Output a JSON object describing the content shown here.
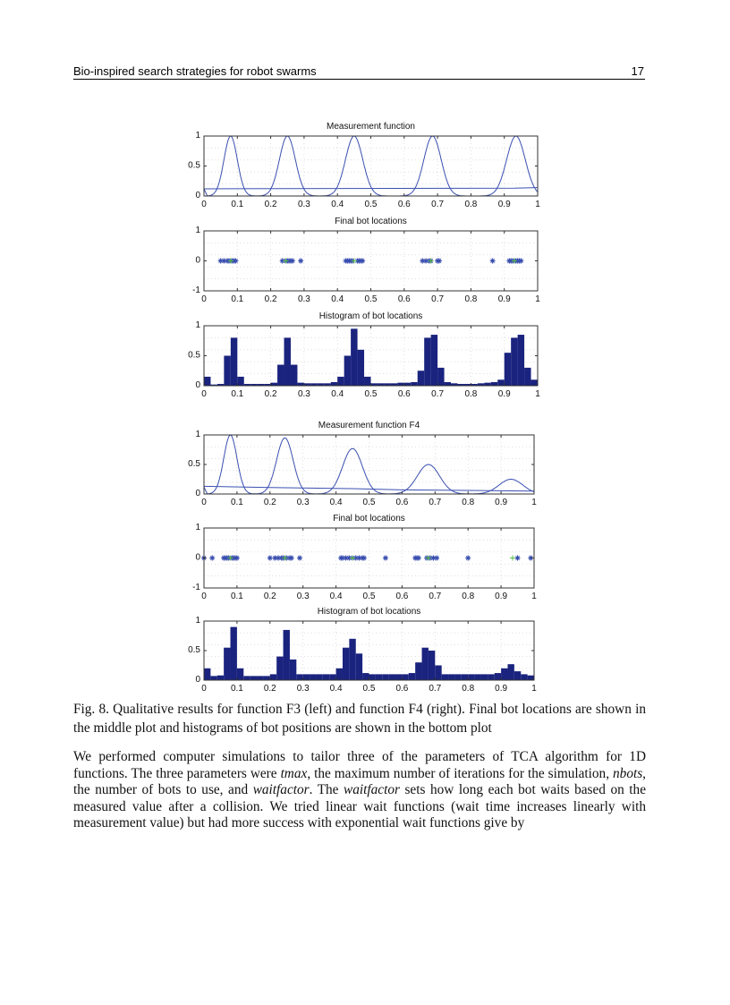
{
  "header": {
    "title": "Bio-inspired search strategies for robot swarms",
    "page_number": "17"
  },
  "caption": "Fig. 8. Qualitative results for function F3 (left) and function F4 (right). Final bot locations are shown in the middle plot and histograms of bot positions are shown in the bottom plot",
  "paragraph": {
    "p1": "We performed computer simulations to tailor three of the parameters of TCA algorithm for 1D functions. The three parameters were ",
    "tmax": "tmax",
    "p2": ", the maximum number of iterations for the simulation, ",
    "nbots": "nbots",
    "p3": ", the number of bots to use, and ",
    "waitfactor1": "waitfactor",
    "p4": ". The ",
    "waitfactor2": "waitfactor",
    "p5": " sets how long each bot waits based on the measured value after a collision. We tried linear wait functions (wait time increases linearly with measurement value) but had more success with exponential wait functions give by"
  },
  "colors": {
    "line": "#3a4fb0",
    "bars": "#1a237e",
    "marker": "#3a4fb0",
    "best_marker": "#5cc04a"
  },
  "chart_data": [
    {
      "type": "line",
      "title": "Measurement function",
      "xlim": [
        0,
        1
      ],
      "ylim": [
        0,
        1
      ],
      "xticks": [
        "0",
        "0.1",
        "0.2",
        "0.3",
        "0.4",
        "0.5",
        "0.6",
        "0.7",
        "0.8",
        "0.9",
        "1"
      ],
      "yticks": [
        "0",
        "0.5",
        "1"
      ],
      "grid": true,
      "peaks": [
        {
          "center": 0.08,
          "height": 1,
          "width": 0.02
        },
        {
          "center": 0.25,
          "height": 1,
          "width": 0.024
        },
        {
          "center": 0.45,
          "height": 1,
          "width": 0.026
        },
        {
          "center": 0.685,
          "height": 1,
          "width": 0.026
        },
        {
          "center": 0.935,
          "height": 1,
          "width": 0.028
        }
      ],
      "baseline": [
        [
          0,
          0.12
        ],
        [
          0.93,
          0.13
        ],
        [
          1,
          0.14
        ]
      ]
    },
    {
      "type": "scatter",
      "title": "Final bot locations",
      "xlim": [
        0,
        1
      ],
      "ylim": [
        -1,
        1
      ],
      "xticks": [
        "0",
        "0.1",
        "0.2",
        "0.3",
        "0.4",
        "0.5",
        "0.6",
        "0.7",
        "0.8",
        "0.9",
        "1"
      ],
      "yticks": [
        "-1",
        "0",
        "1"
      ],
      "grid": true,
      "bots": [
        0.05,
        0.06,
        0.07,
        0.075,
        0.08,
        0.085,
        0.09,
        0.095,
        0.235,
        0.245,
        0.25,
        0.255,
        0.26,
        0.265,
        0.29,
        0.425,
        0.43,
        0.435,
        0.44,
        0.445,
        0.46,
        0.465,
        0.47,
        0.475,
        0.655,
        0.665,
        0.675,
        0.68,
        0.7,
        0.705,
        0.865,
        0.915,
        0.92,
        0.925,
        0.93,
        0.935,
        0.94,
        0.945,
        0.95
      ],
      "best": [
        0.08,
        0.245,
        0.45,
        0.68,
        0.93
      ]
    },
    {
      "type": "bar",
      "title": "Histogram of bot locations",
      "xlim": [
        0,
        1
      ],
      "ylim": [
        0,
        1
      ],
      "xticks": [
        "0",
        "0.1",
        "0.2",
        "0.3",
        "0.4",
        "0.5",
        "0.6",
        "0.7",
        "0.8",
        "0.9",
        "1"
      ],
      "yticks": [
        "0",
        "0.5",
        "1"
      ],
      "grid": true,
      "bin_width": 0.02,
      "values": [
        0.15,
        0.02,
        0.03,
        0.5,
        0.8,
        0.15,
        0.03,
        0.03,
        0.03,
        0.03,
        0.05,
        0.35,
        0.8,
        0.35,
        0.05,
        0.04,
        0.04,
        0.04,
        0.04,
        0.06,
        0.15,
        0.5,
        0.95,
        0.6,
        0.15,
        0.04,
        0.04,
        0.04,
        0.04,
        0.05,
        0.05,
        0.06,
        0.25,
        0.8,
        0.85,
        0.3,
        0.06,
        0.04,
        0.03,
        0.03,
        0.03,
        0.04,
        0.05,
        0.06,
        0.1,
        0.55,
        0.8,
        0.85,
        0.3,
        0.1
      ]
    },
    {
      "type": "line",
      "title": "Measurement function F4",
      "xlim": [
        0,
        1
      ],
      "ylim": [
        0,
        1
      ],
      "xticks": [
        "0",
        "0.1",
        "0.2",
        "0.3",
        "0.4",
        "0.5",
        "0.6",
        "0.7",
        "0.8",
        "0.9",
        "1"
      ],
      "yticks": [
        "0",
        "0.5",
        "1"
      ],
      "grid": true,
      "peaks": [
        {
          "center": 0.08,
          "height": 1,
          "width": 0.02
        },
        {
          "center": 0.245,
          "height": 0.95,
          "width": 0.025
        },
        {
          "center": 0.45,
          "height": 0.77,
          "width": 0.03
        },
        {
          "center": 0.68,
          "height": 0.5,
          "width": 0.034
        },
        {
          "center": 0.93,
          "height": 0.25,
          "width": 0.036
        }
      ],
      "baseline": [
        [
          0,
          0.13
        ],
        [
          0.2,
          0.11
        ],
        [
          0.45,
          0.09
        ],
        [
          0.6,
          0.07
        ],
        [
          0.8,
          0.06
        ],
        [
          1,
          0.05
        ]
      ]
    },
    {
      "type": "scatter",
      "title": "Final bot locations",
      "xlim": [
        0,
        1
      ],
      "ylim": [
        -1,
        1
      ],
      "xticks": [
        "0",
        "0.1",
        "0.2",
        "0.3",
        "0.4",
        "0.5",
        "0.6",
        "0.7",
        "0.8",
        "0.9",
        "1"
      ],
      "yticks": [
        "-1",
        "0",
        "1"
      ],
      "grid": true,
      "bots": [
        0,
        0.025,
        0.06,
        0.065,
        0.07,
        0.075,
        0.085,
        0.09,
        0.095,
        0.1,
        0.2,
        0.215,
        0.225,
        0.235,
        0.24,
        0.25,
        0.26,
        0.265,
        0.29,
        0.415,
        0.42,
        0.43,
        0.44,
        0.45,
        0.46,
        0.47,
        0.48,
        0.485,
        0.55,
        0.64,
        0.645,
        0.65,
        0.675,
        0.685,
        0.695,
        0.705,
        0.8,
        0.95,
        0.99
      ],
      "best": [
        0.08,
        0.245,
        0.45,
        0.68,
        0.935
      ]
    },
    {
      "type": "bar",
      "title": "Histogram of bot locations",
      "xlim": [
        0,
        1
      ],
      "ylim": [
        0,
        1
      ],
      "xticks": [
        "0",
        "0.1",
        "0.2",
        "0.3",
        "0.4",
        "0.5",
        "0.6",
        "0.7",
        "0.8",
        "0.9",
        "1"
      ],
      "yticks": [
        "0",
        "0.5",
        "1"
      ],
      "grid": true,
      "bin_width": 0.02,
      "values": [
        0.2,
        0.07,
        0.08,
        0.55,
        0.9,
        0.2,
        0.07,
        0.07,
        0.07,
        0.07,
        0.1,
        0.4,
        0.85,
        0.35,
        0.1,
        0.1,
        0.1,
        0.1,
        0.1,
        0.1,
        0.2,
        0.55,
        0.7,
        0.45,
        0.12,
        0.1,
        0.1,
        0.1,
        0.1,
        0.1,
        0.1,
        0.12,
        0.3,
        0.55,
        0.5,
        0.25,
        0.1,
        0.1,
        0.1,
        0.1,
        0.1,
        0.1,
        0.1,
        0.1,
        0.12,
        0.2,
        0.27,
        0.15,
        0.1,
        0.08
      ]
    }
  ]
}
